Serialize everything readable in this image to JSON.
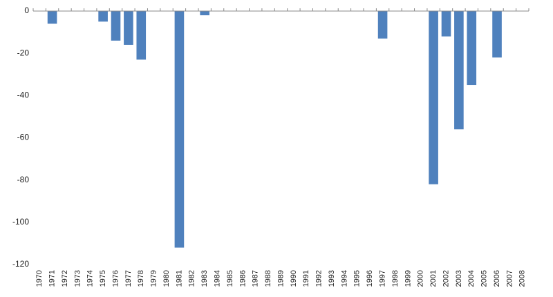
{
  "chart_data": {
    "type": "bar",
    "categories": [
      "1970",
      "1971",
      "1972",
      "1973",
      "1974",
      "1975",
      "1976",
      "1977",
      "1978",
      "1979",
      "1980",
      "1981",
      "1982",
      "1983",
      "1984",
      "1985",
      "1986",
      "1987",
      "1988",
      "1989",
      "1990",
      "1991",
      "1992",
      "1993",
      "1994",
      "1995",
      "1996",
      "1997",
      "1998",
      "1999",
      "2000",
      "2001",
      "2002",
      "2003",
      "2004",
      "2005",
      "2006",
      "2007",
      "2008"
    ],
    "values": [
      0,
      -6,
      0,
      0,
      0,
      -5,
      -14,
      -16,
      -23,
      0,
      0,
      -112,
      0,
      -2,
      0,
      0,
      0,
      0,
      0,
      0,
      0,
      0,
      0,
      0,
      0,
      0,
      0,
      -13,
      0,
      0,
      0,
      -82,
      -12,
      -56,
      -35,
      0,
      -22,
      0,
      0
    ],
    "color": "#4f81bd",
    "ylim": [
      -120,
      0
    ],
    "yticks": [
      0,
      -20,
      -40,
      -60,
      -80,
      -100,
      -120
    ],
    "grid": false
  }
}
